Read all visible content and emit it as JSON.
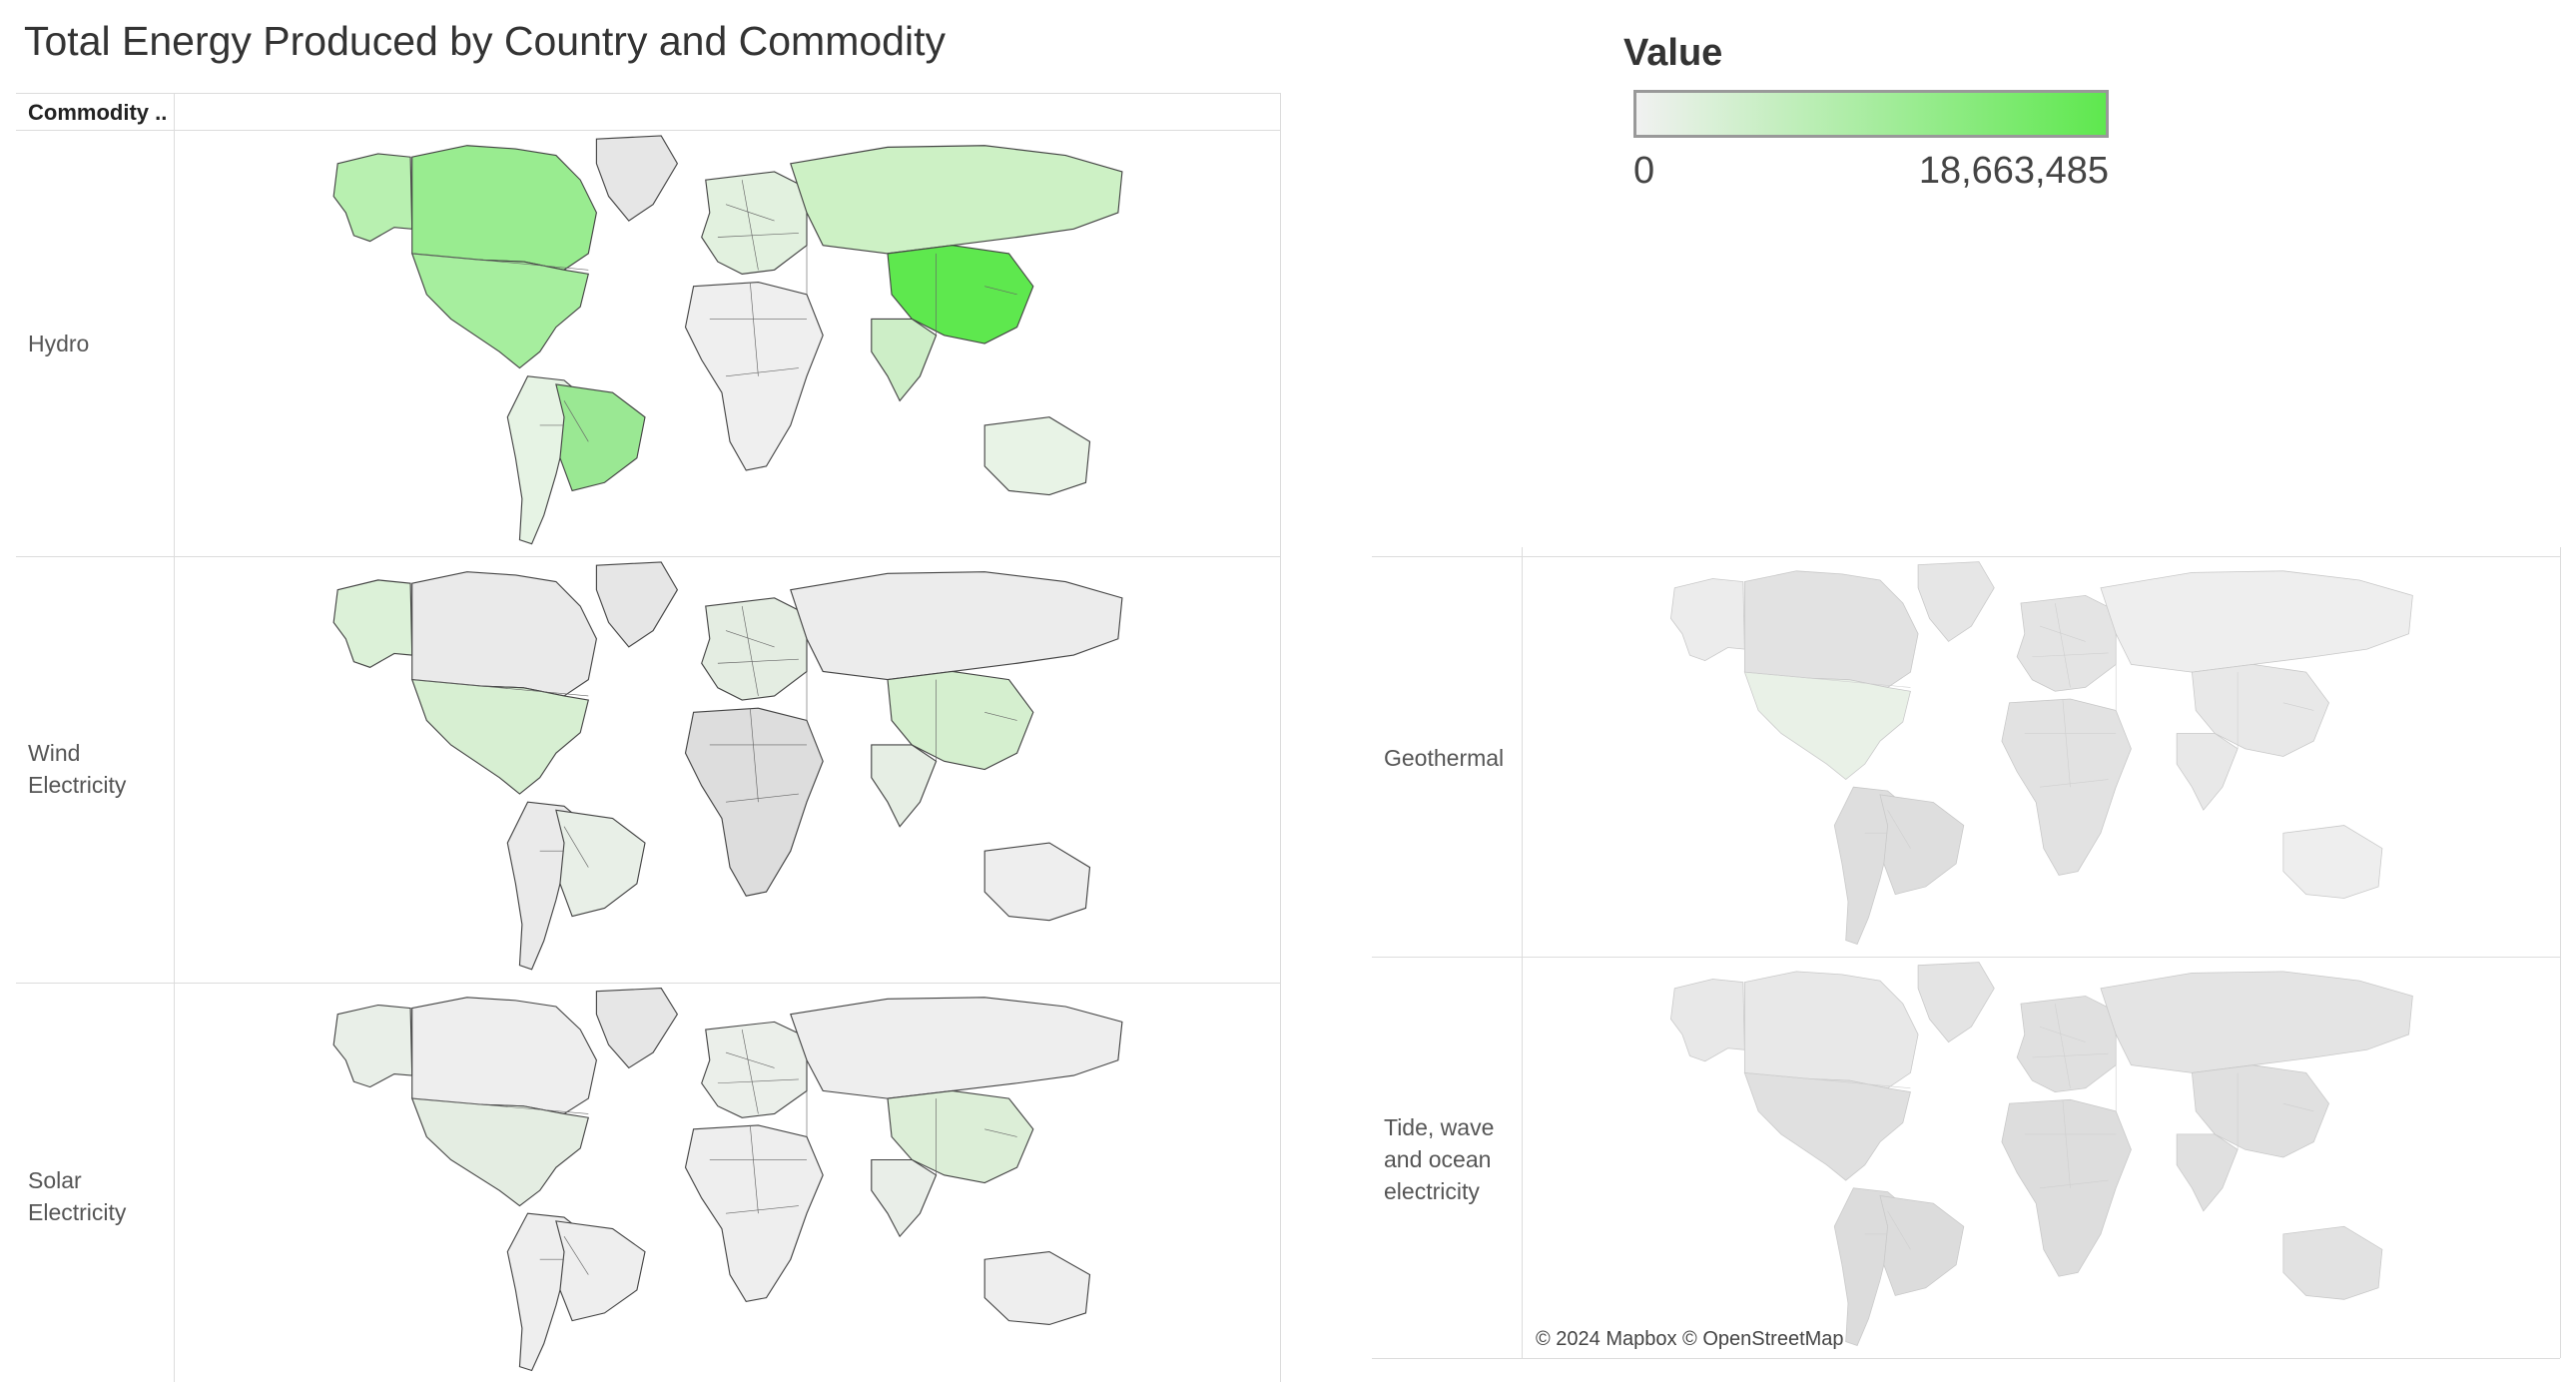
{
  "title": "Total Energy Produced by Country and Commodity",
  "column_header": "Commodity ..",
  "legend": {
    "title": "Value",
    "min": "0",
    "max": "18,663,485",
    "color_low": "#f1f1f1",
    "color_high": "#5ee84e"
  },
  "attribution": "© 2024 Mapbox © OpenStreetMap",
  "panels": [
    {
      "label": "Hydro",
      "shades": {
        "namerica": "#a6ee9e",
        "canada": "#99ec90",
        "alaska": "#b8f0b0",
        "samerica": "#e6f3e4",
        "brazil": "#9ae893",
        "europe": "#e2f1df",
        "russia": "#cdf1c5",
        "china": "#5ee84e",
        "india": "#cdeec7",
        "africa": "#efefef",
        "australia": "#e8f3e6",
        "greenland": "#e6e6e6"
      }
    },
    {
      "label": "Wind Electricity",
      "shades": {
        "namerica": "#d7efd2",
        "canada": "#eaeaea",
        "alaska": "#dcf1d8",
        "samerica": "#eaeaea",
        "brazil": "#e8efe7",
        "europe": "#e4ede2",
        "russia": "#ececec",
        "china": "#d5efcf",
        "india": "#e6eee4",
        "africa": "#dddddd",
        "australia": "#eeeeee",
        "greenland": "#e6e6e6"
      }
    },
    {
      "label": "Solar Electricity",
      "shades": {
        "namerica": "#e4ede2",
        "canada": "#eeeeee",
        "alaska": "#e9efe8",
        "samerica": "#eeeeee",
        "brazil": "#eeeeee",
        "europe": "#ebefea",
        "russia": "#eeeeee",
        "china": "#dceed7",
        "india": "#e9eee8",
        "africa": "#eeeeee",
        "australia": "#eeeeee",
        "greenland": "#e6e6e6"
      }
    },
    {
      "label": "Geothermal",
      "shades": {
        "namerica": "#e9f1e7",
        "canada": "#e2e2e2",
        "alaska": "#ececec",
        "samerica": "#dedede",
        "brazil": "#dedede",
        "europe": "#e4e4e4",
        "russia": "#eeeeee",
        "china": "#e8e8e8",
        "india": "#e8e8e8",
        "africa": "#e2e2e2",
        "australia": "#eeeeee",
        "greenland": "#e6e6e6"
      }
    },
    {
      "label": "Tide, wave and ocean electricity",
      "shades": {
        "namerica": "#e0e0e0",
        "canada": "#e8e8e8",
        "alaska": "#e8e8e8",
        "samerica": "#dcdcdc",
        "brazil": "#dcdcdc",
        "europe": "#e0e0e0",
        "russia": "#e4e4e4",
        "china": "#e0e0e0",
        "india": "#e0e0e0",
        "africa": "#dddddd",
        "australia": "#e2e2e2",
        "greenland": "#e4e4e4"
      }
    }
  ]
}
